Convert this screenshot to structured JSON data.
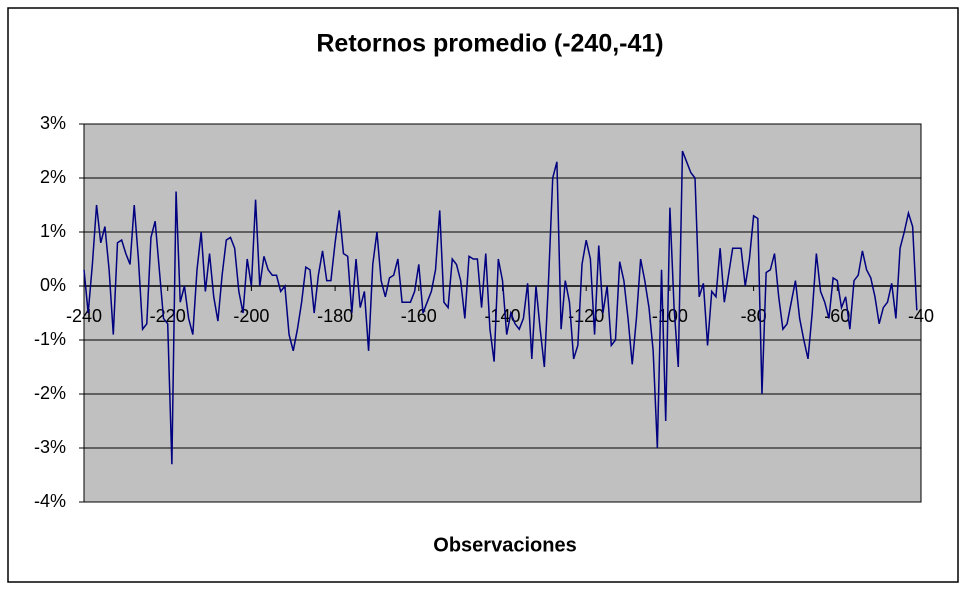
{
  "chart_data": {
    "type": "line",
    "title": "Retornos promedio (-240,-41)",
    "x_label": "Observaciones",
    "x": [
      -240,
      -239,
      -238,
      -237,
      -236,
      -235,
      -234,
      -233,
      -232,
      -231,
      -230,
      -229,
      -228,
      -227,
      -226,
      -225,
      -224,
      -223,
      -222,
      -221,
      -220,
      -219,
      -218,
      -217,
      -216,
      -215,
      -214,
      -213,
      -212,
      -211,
      -210,
      -209,
      -208,
      -207,
      -206,
      -205,
      -204,
      -203,
      -202,
      -201,
      -200,
      -199,
      -198,
      -197,
      -196,
      -195,
      -194,
      -193,
      -192,
      -191,
      -190,
      -189,
      -188,
      -187,
      -186,
      -185,
      -184,
      -183,
      -182,
      -181,
      -180,
      -179,
      -178,
      -177,
      -176,
      -175,
      -174,
      -173,
      -172,
      -171,
      -170,
      -169,
      -168,
      -167,
      -166,
      -165,
      -164,
      -163,
      -162,
      -161,
      -160,
      -159,
      -158,
      -157,
      -156,
      -155,
      -154,
      -153,
      -152,
      -151,
      -150,
      -149,
      -148,
      -147,
      -146,
      -145,
      -144,
      -143,
      -142,
      -141,
      -140,
      -139,
      -138,
      -137,
      -136,
      -135,
      -134,
      -133,
      -132,
      -131,
      -130,
      -129,
      -128,
      -127,
      -126,
      -125,
      -124,
      -123,
      -122,
      -121,
      -120,
      -119,
      -118,
      -117,
      -116,
      -115,
      -114,
      -113,
      -112,
      -111,
      -110,
      -109,
      -108,
      -107,
      -106,
      -105,
      -104,
      -103,
      -102,
      -101,
      -100,
      -99,
      -98,
      -97,
      -96,
      -95,
      -94,
      -93,
      -92,
      -91,
      -90,
      -89,
      -88,
      -87,
      -86,
      -85,
      -84,
      -83,
      -82,
      -81,
      -80,
      -79,
      -78,
      -77,
      -76,
      -75,
      -74,
      -73,
      -72,
      -71,
      -70,
      -69,
      -68,
      -67,
      -66,
      -65,
      -64,
      -63,
      -62,
      -61,
      -60,
      -59,
      -58,
      -57,
      -56,
      -55,
      -54,
      -53,
      -52,
      -51,
      -50,
      -49,
      -48,
      -47,
      -46,
      -45,
      -44,
      -43,
      -42,
      -41
    ],
    "values": [
      0.3,
      -0.5,
      0.4,
      1.5,
      0.8,
      1.1,
      0.3,
      -0.9,
      0.8,
      0.85,
      0.6,
      0.4,
      1.5,
      0.5,
      -0.8,
      -0.7,
      0.9,
      1.2,
      0.3,
      -0.6,
      -0.7,
      -3.3,
      1.75,
      -0.3,
      0.0,
      -0.6,
      -0.9,
      0.3,
      1.0,
      -0.1,
      0.6,
      -0.2,
      -0.65,
      0.2,
      0.85,
      0.9,
      0.7,
      -0.1,
      -0.5,
      0.5,
      0.0,
      1.6,
      0.0,
      0.55,
      0.3,
      0.2,
      0.2,
      -0.1,
      0.0,
      -0.9,
      -1.2,
      -0.8,
      -0.3,
      0.35,
      0.3,
      -0.5,
      0.2,
      0.65,
      0.1,
      0.1,
      0.8,
      1.4,
      0.6,
      0.55,
      -0.5,
      0.5,
      -0.4,
      -0.1,
      -1.2,
      0.4,
      1.0,
      0.1,
      -0.2,
      0.15,
      0.2,
      0.5,
      -0.3,
      -0.3,
      -0.3,
      -0.1,
      0.4,
      -0.5,
      -0.3,
      -0.1,
      0.3,
      1.4,
      -0.3,
      -0.4,
      0.5,
      0.4,
      0.1,
      -0.6,
      0.55,
      0.5,
      0.5,
      -0.4,
      0.6,
      -0.8,
      -1.4,
      0.5,
      0.1,
      -0.9,
      -0.5,
      -0.7,
      -0.8,
      -0.6,
      0.05,
      -1.35,
      0.0,
      -0.8,
      -1.5,
      0.1,
      2.0,
      2.3,
      -0.8,
      0.1,
      -0.3,
      -1.35,
      -1.1,
      0.4,
      0.85,
      0.5,
      -0.9,
      0.75,
      -0.5,
      0.0,
      -1.1,
      -1.0,
      0.45,
      0.1,
      -0.6,
      -1.45,
      -0.6,
      0.5,
      0.1,
      -0.4,
      -1.2,
      -3.0,
      0.3,
      -2.5,
      1.45,
      -0.4,
      -1.5,
      2.5,
      2.3,
      2.1,
      2.0,
      -0.2,
      0.05,
      -1.1,
      -0.1,
      -0.2,
      0.7,
      -0.3,
      0.2,
      0.7,
      0.7,
      0.7,
      0.0,
      0.5,
      1.3,
      1.25,
      -2.0,
      0.25,
      0.3,
      0.6,
      -0.2,
      -0.8,
      -0.7,
      -0.3,
      0.1,
      -0.6,
      -1.0,
      -1.35,
      -0.5,
      0.6,
      -0.1,
      -0.3,
      -0.6,
      0.15,
      0.1,
      -0.4,
      -0.2,
      -0.8,
      0.1,
      0.2,
      0.65,
      0.3,
      0.15,
      -0.2,
      -0.7,
      -0.4,
      -0.3,
      0.05,
      -0.6,
      0.7,
      1.0,
      1.35,
      1.1,
      -0.45
    ],
    "color": "#000080",
    "xlim": [
      -240,
      -40
    ],
    "xticks": [
      -240,
      -220,
      -200,
      -180,
      -160,
      -140,
      -120,
      -100,
      -80,
      -60,
      -40
    ],
    "ylim": [
      -4,
      3
    ],
    "yticks": [
      {
        "value": -4,
        "label": "-4%"
      },
      {
        "value": -3,
        "label": "-3%"
      },
      {
        "value": -2,
        "label": "-2%"
      },
      {
        "value": -1,
        "label": "-1%"
      },
      {
        "value": 0,
        "label": "0%"
      },
      {
        "value": 1,
        "label": "1%"
      },
      {
        "value": 2,
        "label": "2%"
      },
      {
        "value": 3,
        "label": "3%"
      }
    ],
    "grid": true
  }
}
